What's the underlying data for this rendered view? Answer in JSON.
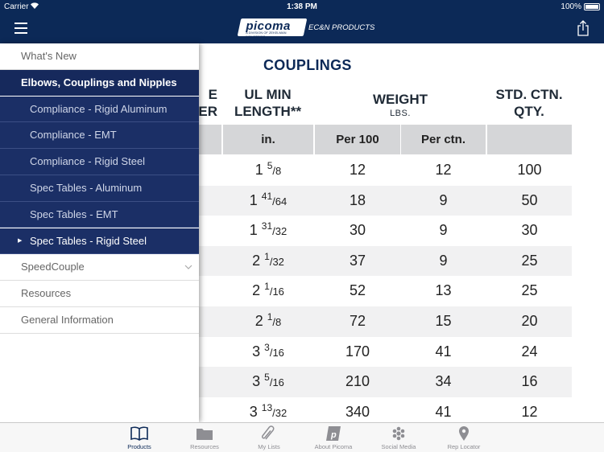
{
  "status_bar": {
    "carrier": "Carrier",
    "time": "1:38 PM",
    "battery": "100%"
  },
  "header": {
    "logo_text": "picoma",
    "logo_subtext": "A DIVISION OF ZEKELMAN INDUSTRIES",
    "product_line": "EC&N PRODUCTS"
  },
  "drawer": {
    "items": [
      {
        "label": "What's New",
        "kind": "top"
      },
      {
        "label": "Elbows, Couplings and Nipples",
        "kind": "section"
      },
      {
        "label": "Compliance - Rigid Aluminum",
        "kind": "sub"
      },
      {
        "label": "Compliance - EMT",
        "kind": "sub"
      },
      {
        "label": "Compliance - Rigid Steel",
        "kind": "sub"
      },
      {
        "label": "Spec Tables - Aluminum",
        "kind": "sub"
      },
      {
        "label": "Spec Tables - EMT",
        "kind": "sub"
      },
      {
        "label": "Spec Tables - Rigid Steel",
        "kind": "sub",
        "current": true
      },
      {
        "label": "SpeedCouple",
        "kind": "top",
        "expandable": true
      },
      {
        "label": "Resources",
        "kind": "top"
      },
      {
        "label": "General Information",
        "kind": "top"
      }
    ]
  },
  "table": {
    "title": "COUPLINGS",
    "partial_col_fragment": "E\nER",
    "headers": {
      "ul_min_length": "UL MIN\nLENGTH**",
      "weight": "WEIGHT",
      "weight_unit": "LBS.",
      "std_ctn_qty": "STD. CTN.\nQTY."
    },
    "subheaders": {
      "length_unit": "in.",
      "per_100": "Per 100",
      "per_ctn": "Per ctn."
    },
    "rows": [
      {
        "whole": "1",
        "num": "5",
        "den": "8",
        "per_100": "12",
        "per_ctn": "12",
        "qty": "100"
      },
      {
        "whole": "1",
        "num": "41",
        "den": "64",
        "per_100": "18",
        "per_ctn": "9",
        "qty": "50"
      },
      {
        "whole": "1",
        "num": "31",
        "den": "32",
        "per_100": "30",
        "per_ctn": "9",
        "qty": "30"
      },
      {
        "whole": "2",
        "num": "1",
        "den": "32",
        "per_100": "37",
        "per_ctn": "9",
        "qty": "25"
      },
      {
        "whole": "2",
        "num": "1",
        "den": "16",
        "per_100": "52",
        "per_ctn": "13",
        "qty": "25"
      },
      {
        "whole": "2",
        "num": "1",
        "den": "8",
        "per_100": "72",
        "per_ctn": "15",
        "qty": "20"
      },
      {
        "whole": "3",
        "num": "3",
        "den": "16",
        "per_100": "170",
        "per_ctn": "41",
        "qty": "24"
      },
      {
        "whole": "3",
        "num": "5",
        "den": "16",
        "per_100": "210",
        "per_ctn": "34",
        "qty": "16"
      },
      {
        "whole": "3",
        "num": "13",
        "den": "32",
        "per_100": "340",
        "per_ctn": "41",
        "qty": "12"
      }
    ]
  },
  "tab_bar": {
    "tabs": [
      {
        "label": "Products",
        "icon": "book-icon",
        "active": true
      },
      {
        "label": "Resources",
        "icon": "folder-icon"
      },
      {
        "label": "My Lists",
        "icon": "paperclip-icon"
      },
      {
        "label": "About Picoma",
        "icon": "picoma-p-icon"
      },
      {
        "label": "Social Media",
        "icon": "social-hex-icon"
      },
      {
        "label": "Rep Locator",
        "icon": "map-pin-icon"
      }
    ]
  },
  "colors": {
    "navy": "#0c2957",
    "drawer_blue": "#1b2f66",
    "header_gray": "#d5d6d8",
    "row_shade": "#f1f1f2"
  }
}
